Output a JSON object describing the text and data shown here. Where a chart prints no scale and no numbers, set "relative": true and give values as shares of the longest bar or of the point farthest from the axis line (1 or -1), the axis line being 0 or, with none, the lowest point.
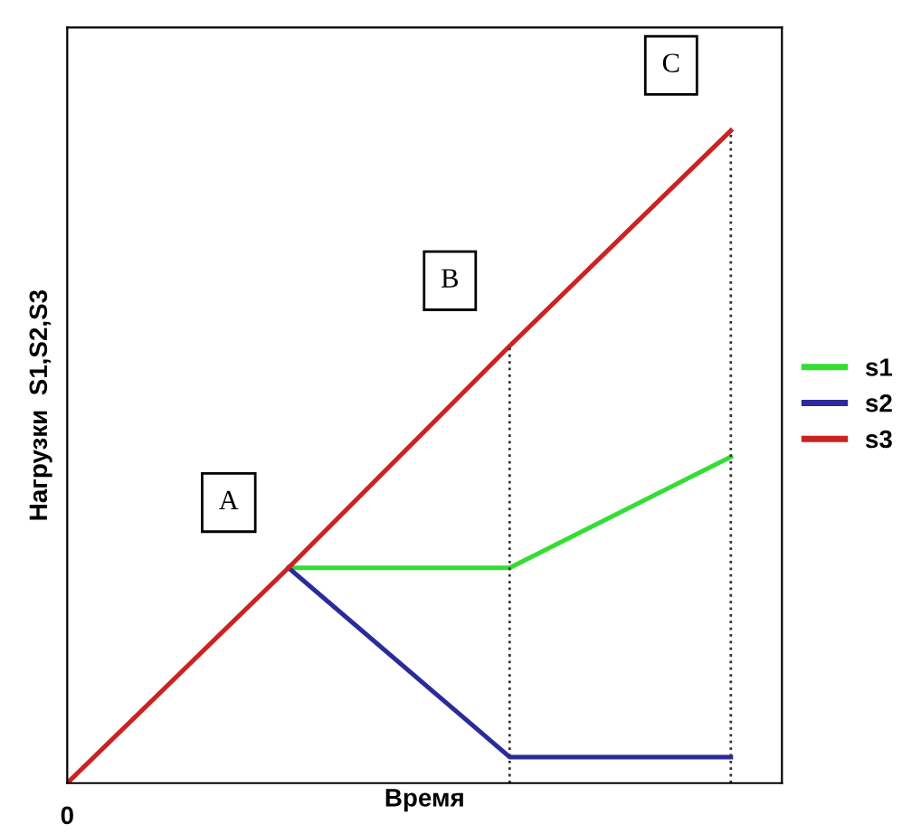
{
  "chart_data": {
    "type": "line",
    "relative": true,
    "xlabel": "Время",
    "ylabel": "Нагрузки  S1,S2,S3",
    "categories": [
      null,
      null,
      null,
      null
    ],
    "series": [
      {
        "name": "s1",
        "color": "#33dd33",
        "values": [
          null,
          0.33,
          0.33,
          0.5
        ]
      },
      {
        "name": "s2",
        "color": "#2b2b9a",
        "values": [
          null,
          0.33,
          0.04,
          0.04
        ]
      },
      {
        "name": "s3",
        "color": "#cc2222",
        "values": [
          0,
          0.33,
          0.67,
          1
        ]
      }
    ],
    "annotations": [
      "0",
      "A",
      "B",
      "C"
    ],
    "legend": "right",
    "marker": "none",
    "line_style": "solid"
  }
}
